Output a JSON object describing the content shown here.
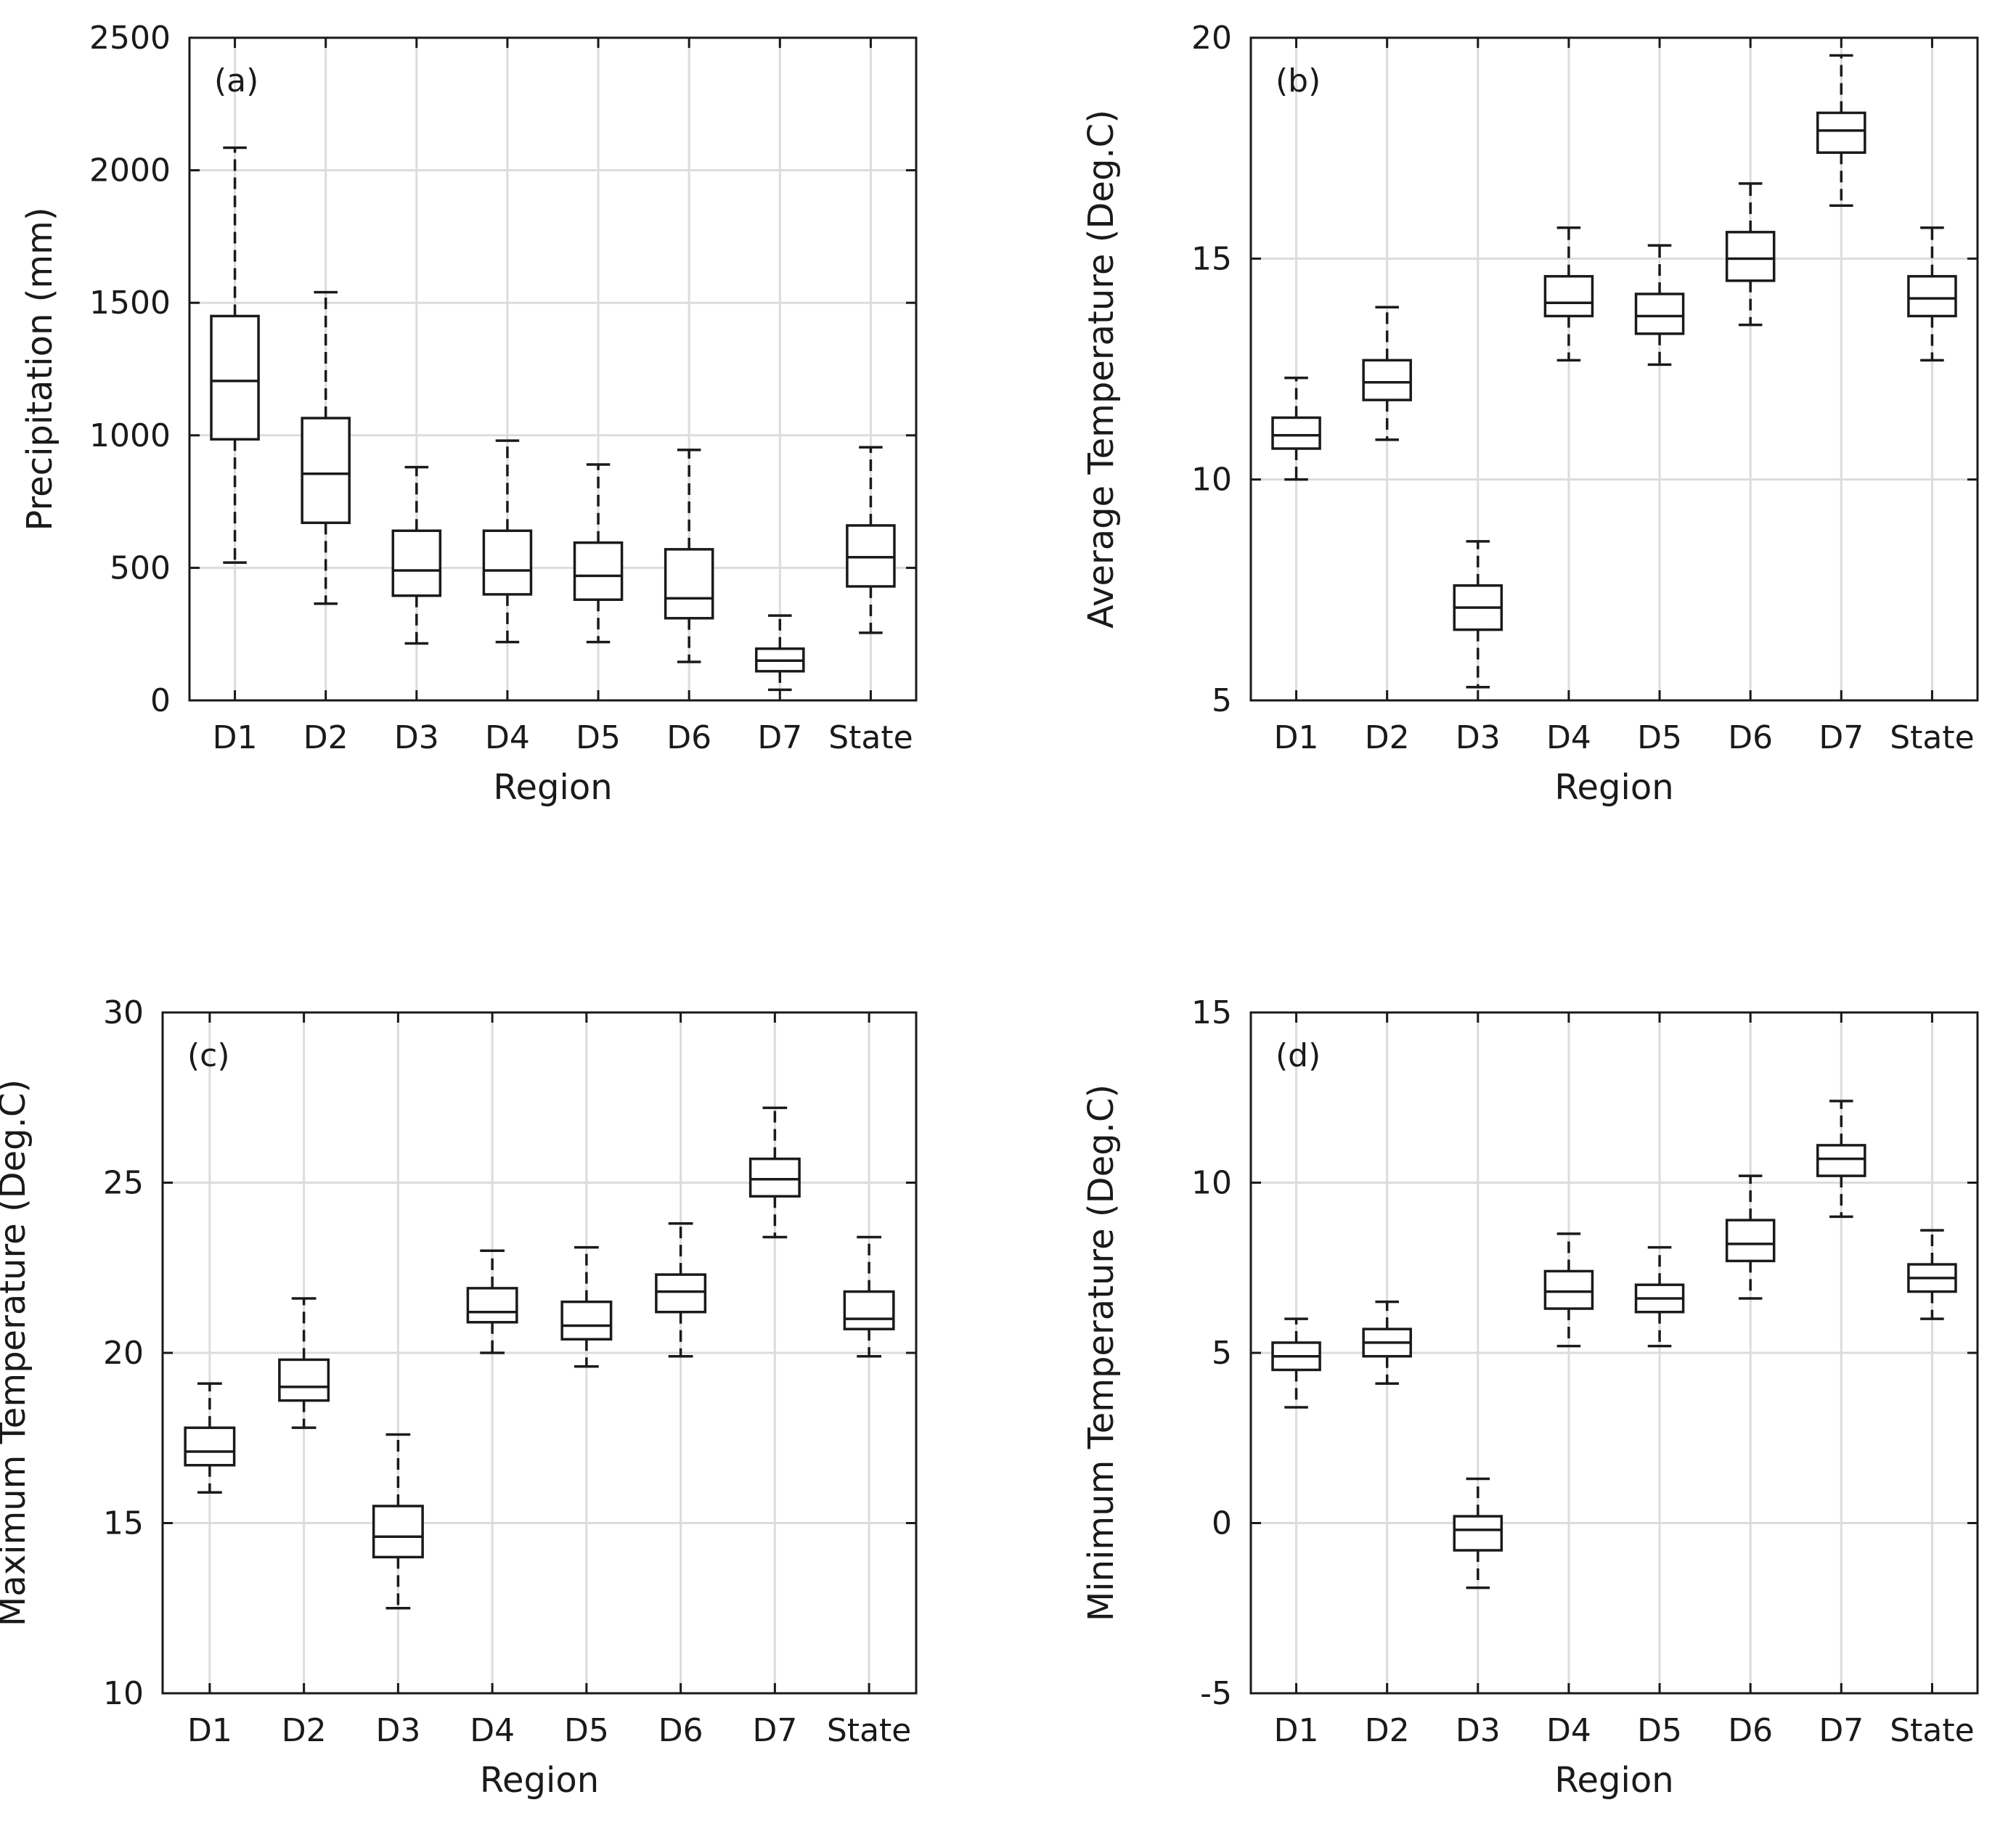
{
  "chart_data": [
    {
      "type": "boxplot",
      "panel_label": "(a)",
      "xlabel": "Region",
      "ylabel": "Precipitation (mm)",
      "ylim": [
        0,
        2500
      ],
      "yticks": [
        0,
        500,
        1000,
        1500,
        2000,
        2500
      ],
      "categories": [
        "D1",
        "D2",
        "D3",
        "D4",
        "D5",
        "D6",
        "D7",
        "State"
      ],
      "boxes": [
        {
          "whisker_low": 520,
          "q1": 985,
          "median": 1205,
          "q3": 1450,
          "whisker_high": 2085
        },
        {
          "whisker_low": 365,
          "q1": 670,
          "median": 855,
          "q3": 1065,
          "whisker_high": 1540
        },
        {
          "whisker_low": 215,
          "q1": 395,
          "median": 490,
          "q3": 640,
          "whisker_high": 880
        },
        {
          "whisker_low": 220,
          "q1": 400,
          "median": 490,
          "q3": 640,
          "whisker_high": 980
        },
        {
          "whisker_low": 220,
          "q1": 380,
          "median": 470,
          "q3": 595,
          "whisker_high": 890
        },
        {
          "whisker_low": 145,
          "q1": 310,
          "median": 385,
          "q3": 570,
          "whisker_high": 945
        },
        {
          "whisker_low": 40,
          "q1": 110,
          "median": 150,
          "q3": 195,
          "whisker_high": 320
        },
        {
          "whisker_low": 255,
          "q1": 430,
          "median": 540,
          "q3": 660,
          "whisker_high": 955
        }
      ]
    },
    {
      "type": "boxplot",
      "panel_label": "(b)",
      "xlabel": "Region",
      "ylabel": "Average Temperature (Deg.C)",
      "ylim": [
        5,
        20
      ],
      "yticks": [
        5,
        10,
        15,
        20
      ],
      "categories": [
        "D1",
        "D2",
        "D3",
        "D4",
        "D5",
        "D6",
        "D7",
        "State"
      ],
      "boxes": [
        {
          "whisker_low": 10.0,
          "q1": 10.7,
          "median": 11.0,
          "q3": 11.4,
          "whisker_high": 12.3
        },
        {
          "whisker_low": 10.9,
          "q1": 11.8,
          "median": 12.2,
          "q3": 12.7,
          "whisker_high": 13.9
        },
        {
          "whisker_low": 5.3,
          "q1": 6.6,
          "median": 7.1,
          "q3": 7.6,
          "whisker_high": 8.6
        },
        {
          "whisker_low": 12.7,
          "q1": 13.7,
          "median": 14.0,
          "q3": 14.6,
          "whisker_high": 15.7
        },
        {
          "whisker_low": 12.6,
          "q1": 13.3,
          "median": 13.7,
          "q3": 14.2,
          "whisker_high": 15.3
        },
        {
          "whisker_low": 13.5,
          "q1": 14.5,
          "median": 15.0,
          "q3": 15.6,
          "whisker_high": 16.7
        },
        {
          "whisker_low": 16.2,
          "q1": 17.4,
          "median": 17.9,
          "q3": 18.3,
          "whisker_high": 19.6
        },
        {
          "whisker_low": 12.7,
          "q1": 13.7,
          "median": 14.1,
          "q3": 14.6,
          "whisker_high": 15.7
        }
      ]
    },
    {
      "type": "boxplot",
      "panel_label": "(c)",
      "xlabel": "Region",
      "ylabel": "Maximum Temperature (Deg.C)",
      "ylim": [
        10,
        30
      ],
      "yticks": [
        10,
        15,
        20,
        25,
        30
      ],
      "categories": [
        "D1",
        "D2",
        "D3",
        "D4",
        "D5",
        "D6",
        "D7",
        "State"
      ],
      "boxes": [
        {
          "whisker_low": 15.9,
          "q1": 16.7,
          "median": 17.1,
          "q3": 17.8,
          "whisker_high": 19.1
        },
        {
          "whisker_low": 17.8,
          "q1": 18.6,
          "median": 19.0,
          "q3": 19.8,
          "whisker_high": 21.6
        },
        {
          "whisker_low": 12.5,
          "q1": 14.0,
          "median": 14.6,
          "q3": 15.5,
          "whisker_high": 17.6
        },
        {
          "whisker_low": 20.0,
          "q1": 20.9,
          "median": 21.2,
          "q3": 21.9,
          "whisker_high": 23.0
        },
        {
          "whisker_low": 19.6,
          "q1": 20.4,
          "median": 20.8,
          "q3": 21.5,
          "whisker_high": 23.1
        },
        {
          "whisker_low": 19.9,
          "q1": 21.2,
          "median": 21.8,
          "q3": 22.3,
          "whisker_high": 23.8
        },
        {
          "whisker_low": 23.4,
          "q1": 24.6,
          "median": 25.1,
          "q3": 25.7,
          "whisker_high": 27.2
        },
        {
          "whisker_low": 19.9,
          "q1": 20.7,
          "median": 21.0,
          "q3": 21.8,
          "whisker_high": 23.4
        }
      ]
    },
    {
      "type": "boxplot",
      "panel_label": "(d)",
      "xlabel": "Region",
      "ylabel": "Minimum Temperature (Deg.C)",
      "ylim": [
        -5,
        15
      ],
      "yticks": [
        -5,
        0,
        5,
        10,
        15
      ],
      "categories": [
        "D1",
        "D2",
        "D3",
        "D4",
        "D5",
        "D6",
        "D7",
        "State"
      ],
      "boxes": [
        {
          "whisker_low": 3.4,
          "q1": 4.5,
          "median": 4.9,
          "q3": 5.3,
          "whisker_high": 6.0
        },
        {
          "whisker_low": 4.1,
          "q1": 4.9,
          "median": 5.3,
          "q3": 5.7,
          "whisker_high": 6.5
        },
        {
          "whisker_low": -1.9,
          "q1": -0.8,
          "median": -0.2,
          "q3": 0.2,
          "whisker_high": 1.3
        },
        {
          "whisker_low": 5.2,
          "q1": 6.3,
          "median": 6.8,
          "q3": 7.4,
          "whisker_high": 8.5
        },
        {
          "whisker_low": 5.2,
          "q1": 6.2,
          "median": 6.6,
          "q3": 7.0,
          "whisker_high": 8.1
        },
        {
          "whisker_low": 6.6,
          "q1": 7.7,
          "median": 8.2,
          "q3": 8.9,
          "whisker_high": 10.2
        },
        {
          "whisker_low": 9.0,
          "q1": 10.2,
          "median": 10.7,
          "q3": 11.1,
          "whisker_high": 12.4
        },
        {
          "whisker_low": 6.0,
          "q1": 6.8,
          "median": 7.2,
          "q3": 7.6,
          "whisker_high": 8.6
        }
      ]
    }
  ]
}
